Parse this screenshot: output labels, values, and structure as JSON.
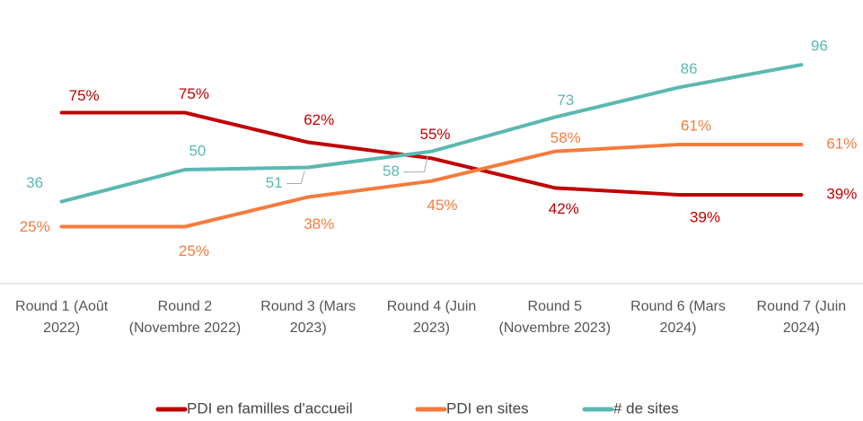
{
  "chart_data": {
    "type": "line",
    "categories": [
      "Round 1 (Août 2022)",
      "Round 2 (Novembre 2022)",
      "Round 3 (Mars 2023)",
      "Round 4 (Juin 2023)",
      "Round 5 (Novembre 2023)",
      "Round 6 (Mars 2024)",
      "Round 7 (Juin 2024)"
    ],
    "ylim": [
      0,
      100
    ],
    "y2lim": [
      0,
      100
    ],
    "legend": "bottom",
    "series": [
      {
        "name": "PDI en familles d'accueil",
        "color": "#c00000",
        "values": [
          75,
          75,
          62,
          55,
          42,
          39,
          39
        ],
        "value_labels": [
          "75%",
          "75%",
          "62%",
          "55%",
          "42%",
          "39%",
          "39%"
        ]
      },
      {
        "name": "PDI en sites",
        "color": "#f47b3c",
        "values": [
          25,
          25,
          38,
          45,
          58,
          61,
          61
        ],
        "value_labels": [
          "25%",
          "25%",
          "38%",
          "45%",
          "58%",
          "61%",
          "61%"
        ]
      },
      {
        "name": "# de sites",
        "color": "#5bb8b0",
        "axis": "y2",
        "values": [
          36,
          50,
          51,
          58,
          73,
          86,
          96
        ]
      }
    ]
  }
}
